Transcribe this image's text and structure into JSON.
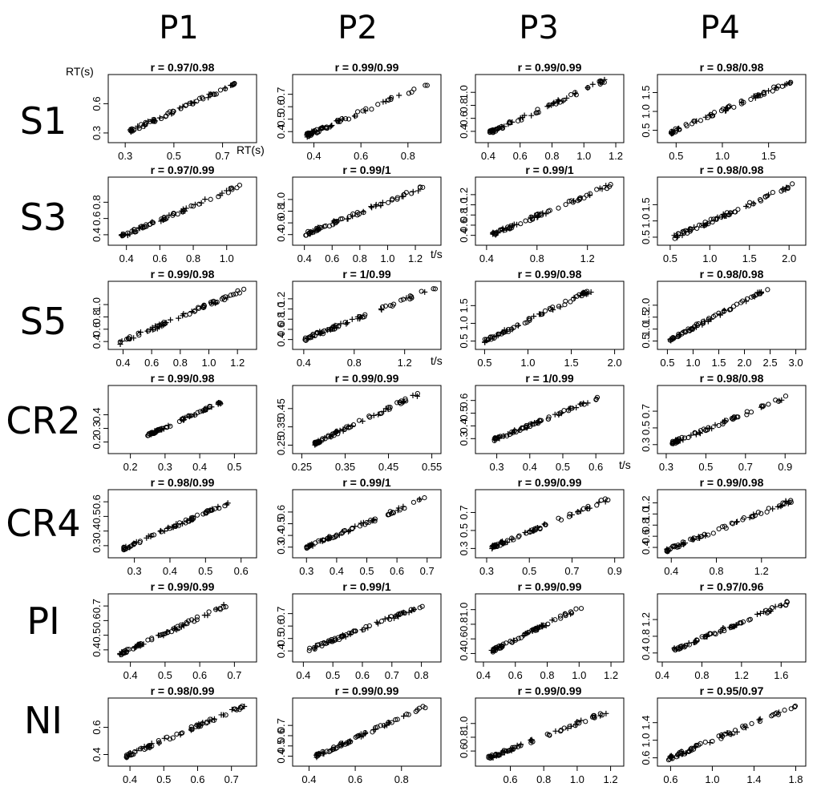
{
  "columns": [
    "P1",
    "P2",
    "P3",
    "P4"
  ],
  "rows": [
    "S1",
    "S3",
    "S5",
    "CR2",
    "CR4",
    "PI",
    "NI"
  ],
  "annotations": {
    "ylabel_rt": "RT(s)",
    "xlabel_rt": "RT(s)",
    "xlabel_ts": "t/s"
  },
  "chart_data": [
    {
      "type": "scatter",
      "title": "r = 0.97/0.98",
      "row": "S1",
      "col": "P1",
      "xlim": [
        0.25,
        0.82
      ],
      "ylim": [
        0.25,
        0.85
      ],
      "xticks": [
        0.3,
        0.5,
        0.7
      ],
      "yticks": [
        0.3,
        0.6
      ],
      "x_range": [
        0.32,
        0.75
      ],
      "y_range": [
        0.32,
        0.8
      ]
    },
    {
      "type": "scatter",
      "title": "r = 0.99/0.99",
      "row": "S1",
      "col": "P2",
      "xlim": [
        0.33,
        0.92
      ],
      "ylim": [
        0.35,
        0.82
      ],
      "xticks": [
        0.4,
        0.6,
        0.8
      ],
      "yticks": [
        0.4,
        0.5,
        0.6,
        0.7
      ],
      "x_range": [
        0.37,
        0.9
      ],
      "y_range": [
        0.37,
        0.8
      ]
    },
    {
      "type": "scatter",
      "title": "r = 0.99/0.99",
      "row": "S1",
      "col": "P3",
      "xlim": [
        0.35,
        1.22
      ],
      "ylim": [
        0.3,
        1.2
      ],
      "xticks": [
        0.4,
        0.6,
        0.8,
        1.0,
        1.2
      ],
      "yticks": [
        0.4,
        0.6,
        0.8,
        1.0
      ],
      "x_range": [
        0.41,
        1.13
      ],
      "y_range": [
        0.38,
        1.18
      ]
    },
    {
      "type": "scatter",
      "title": "r = 0.98/0.98",
      "row": "S1",
      "col": "P4",
      "xlim": [
        0.35,
        1.85
      ],
      "ylim": [
        0.3,
        1.85
      ],
      "xticks": [
        0.5,
        1.0,
        1.5
      ],
      "yticks": [
        0.5,
        1.0,
        1.5
      ],
      "x_range": [
        0.45,
        1.75
      ],
      "y_range": [
        0.45,
        1.8
      ]
    },
    {
      "type": "scatter",
      "title": "r = 0.97/0.99",
      "row": "S3",
      "col": "P1",
      "xlim": [
        0.32,
        1.15
      ],
      "ylim": [
        0.33,
        1.05
      ],
      "xticks": [
        0.4,
        0.6,
        0.8,
        1.0
      ],
      "yticks": [
        0.4,
        0.6,
        0.8
      ],
      "x_range": [
        0.37,
        1.08
      ],
      "y_range": [
        0.38,
        1.0
      ]
    },
    {
      "type": "scatter",
      "title": "r = 0.99/1",
      "row": "S3",
      "col": "P2",
      "xlim": [
        0.35,
        1.35
      ],
      "ylim": [
        0.3,
        1.3
      ],
      "xticks": [
        0.4,
        0.6,
        0.8,
        1.0,
        1.2
      ],
      "yticks": [
        0.4,
        0.6,
        0.8,
        1.0
      ],
      "x_range": [
        0.41,
        1.3
      ],
      "y_range": [
        0.41,
        1.25
      ]
    },
    {
      "type": "scatter",
      "title": "r = 0.99/1",
      "row": "S3",
      "col": "P3",
      "xlim": [
        0.35,
        1.45
      ],
      "ylim": [
        0.3,
        1.45
      ],
      "xticks": [
        0.4,
        0.8,
        1.2
      ],
      "yticks": [
        0.4,
        0.6,
        0.8,
        1.0,
        1.2
      ],
      "x_range": [
        0.45,
        1.4
      ],
      "y_range": [
        0.42,
        1.4
      ]
    },
    {
      "type": "scatter",
      "title": "r = 0.98/0.98",
      "row": "S3",
      "col": "P4",
      "xlim": [
        0.4,
        2.15
      ],
      "ylim": [
        0.4,
        2.2
      ],
      "xticks": [
        0.5,
        1.0,
        1.5,
        2.0
      ],
      "yticks": [
        0.5,
        1.0,
        1.5
      ],
      "x_range": [
        0.55,
        2.05
      ],
      "y_range": [
        0.5,
        2.1
      ]
    },
    {
      "type": "scatter",
      "title": "r = 0.99/0.98",
      "row": "S5",
      "col": "P1",
      "xlim": [
        0.33,
        1.3
      ],
      "ylim": [
        0.35,
        1.3
      ],
      "xticks": [
        0.4,
        0.6,
        0.8,
        1.0,
        1.2
      ],
      "yticks": [
        0.4,
        0.6,
        0.8,
        1.0
      ],
      "x_range": [
        0.38,
        1.25
      ],
      "y_range": [
        0.38,
        1.25
      ]
    },
    {
      "type": "scatter",
      "title": "r = 1/0.99",
      "row": "S5",
      "col": "P2",
      "xlim": [
        0.35,
        1.45
      ],
      "ylim": [
        0.3,
        1.45
      ],
      "xticks": [
        0.4,
        0.8,
        1.2
      ],
      "yticks": [
        0.4,
        0.6,
        0.8,
        1.0,
        1.2
      ],
      "x_range": [
        0.41,
        1.45
      ],
      "y_range": [
        0.41,
        1.43
      ]
    },
    {
      "type": "scatter",
      "title": "r = 0.99/0.98",
      "row": "S5",
      "col": "P3",
      "xlim": [
        0.45,
        2.05
      ],
      "ylim": [
        0.4,
        2.05
      ],
      "xticks": [
        0.5,
        1.0,
        1.5,
        2.0
      ],
      "yticks": [
        0.5,
        1.0,
        1.5
      ],
      "x_range": [
        0.5,
        1.75
      ],
      "y_range": [
        0.5,
        1.95
      ]
    },
    {
      "type": "scatter",
      "title": "r = 0.98/0.98",
      "row": "S5",
      "col": "P4",
      "xlim": [
        0.4,
        3.1
      ],
      "ylim": [
        0.35,
        2.8
      ],
      "xticks": [
        0.5,
        1.0,
        1.5,
        2.0,
        2.5,
        3.0
      ],
      "yticks": [
        0.5,
        1.0,
        1.5,
        2.0
      ],
      "x_range": [
        0.55,
        2.5
      ],
      "y_range": [
        0.55,
        2.75
      ]
    },
    {
      "type": "scatter",
      "title": "r = 0.99/0.98",
      "row": "CR2",
      "col": "P1",
      "xlim": [
        0.15,
        0.55
      ],
      "ylim": [
        0.15,
        0.58
      ],
      "xticks": [
        0.2,
        0.3,
        0.4,
        0.5
      ],
      "yticks": [
        0.2,
        0.3,
        0.4
      ],
      "x_range": [
        0.25,
        0.46
      ],
      "y_range": [
        0.25,
        0.49
      ]
    },
    {
      "type": "scatter",
      "title": "r = 0.99/0.99",
      "row": "CR2",
      "col": "P2",
      "xlim": [
        0.24,
        0.56
      ],
      "ylim": [
        0.23,
        0.55
      ],
      "xticks": [
        0.25,
        0.35,
        0.45,
        0.55
      ],
      "yticks": [
        0.25,
        0.35,
        0.45
      ],
      "x_range": [
        0.28,
        0.52
      ],
      "y_range": [
        0.26,
        0.53
      ]
    },
    {
      "type": "scatter",
      "title": "r = 1/0.99",
      "row": "CR2",
      "col": "P3",
      "xlim": [
        0.25,
        0.67
      ],
      "ylim": [
        0.22,
        0.68
      ],
      "xticks": [
        0.3,
        0.4,
        0.5,
        0.6
      ],
      "yticks": [
        0.3,
        0.4,
        0.5,
        0.6
      ],
      "x_range": [
        0.29,
        0.61
      ],
      "y_range": [
        0.29,
        0.62
      ]
    },
    {
      "type": "scatter",
      "title": "r = 0.98/0.98",
      "row": "CR2",
      "col": "P4",
      "xlim": [
        0.28,
        0.98
      ],
      "ylim": [
        0.25,
        0.95
      ],
      "xticks": [
        0.3,
        0.5,
        0.7,
        0.9
      ],
      "yticks": [
        0.3,
        0.5,
        0.7
      ],
      "x_range": [
        0.33,
        0.92
      ],
      "y_range": [
        0.32,
        0.88
      ]
    },
    {
      "type": "scatter",
      "title": "r = 0.98/0.99",
      "row": "CR4",
      "col": "P1",
      "xlim": [
        0.24,
        0.63
      ],
      "ylim": [
        0.25,
        0.65
      ],
      "xticks": [
        0.3,
        0.4,
        0.5,
        0.6
      ],
      "yticks": [
        0.3,
        0.4,
        0.5,
        0.6
      ],
      "x_range": [
        0.27,
        0.57
      ],
      "y_range": [
        0.28,
        0.6
      ]
    },
    {
      "type": "scatter",
      "title": "r = 0.99/1",
      "row": "CR4",
      "col": "P2",
      "xlim": [
        0.27,
        0.73
      ],
      "ylim": [
        0.25,
        0.75
      ],
      "xticks": [
        0.3,
        0.4,
        0.5,
        0.6,
        0.7
      ],
      "yticks": [
        0.3,
        0.4,
        0.5,
        0.6
      ],
      "x_range": [
        0.3,
        0.7
      ],
      "y_range": [
        0.3,
        0.72
      ]
    },
    {
      "type": "scatter",
      "title": "r = 0.99/0.99",
      "row": "CR4",
      "col": "P3",
      "xlim": [
        0.27,
        0.92
      ],
      "ylim": [
        0.25,
        0.9
      ],
      "xticks": [
        0.3,
        0.5,
        0.7,
        0.9
      ],
      "yticks": [
        0.3,
        0.5,
        0.7
      ],
      "x_range": [
        0.32,
        0.87
      ],
      "y_range": [
        0.31,
        0.85
      ]
    },
    {
      "type": "scatter",
      "title": "r = 0.99/0.98",
      "row": "CR4",
      "col": "P4",
      "xlim": [
        0.32,
        1.55
      ],
      "ylim": [
        0.3,
        1.35
      ],
      "xticks": [
        0.4,
        0.8,
        1.2
      ],
      "yticks": [
        0.4,
        0.6,
        0.8,
        1.0,
        1.2
      ],
      "x_range": [
        0.36,
        1.5
      ],
      "y_range": [
        0.35,
        1.27
      ]
    },
    {
      "type": "scatter",
      "title": "r = 0.99/0.99",
      "row": "PI",
      "col": "P1",
      "xlim": [
        0.35,
        0.75
      ],
      "ylim": [
        0.35,
        0.75
      ],
      "xticks": [
        0.4,
        0.5,
        0.6,
        0.7
      ],
      "yticks": [
        0.4,
        0.5,
        0.6,
        0.7
      ],
      "x_range": [
        0.37,
        0.68
      ],
      "y_range": [
        0.37,
        0.71
      ]
    },
    {
      "type": "scatter",
      "title": "r = 0.99/1",
      "row": "PI",
      "col": "P2",
      "xlim": [
        0.38,
        0.85
      ],
      "ylim": [
        0.35,
        0.82
      ],
      "xticks": [
        0.4,
        0.5,
        0.6,
        0.7,
        0.8
      ],
      "yticks": [
        0.4,
        0.5,
        0.6,
        0.7
      ],
      "x_range": [
        0.42,
        0.82
      ],
      "y_range": [
        0.41,
        0.78
      ]
    },
    {
      "type": "scatter",
      "title": "r = 0.99/0.99",
      "row": "PI",
      "col": "P3",
      "xlim": [
        0.38,
        1.25
      ],
      "ylim": [
        0.35,
        1.15
      ],
      "xticks": [
        0.4,
        0.6,
        0.8,
        1.0,
        1.2
      ],
      "yticks": [
        0.4,
        0.6,
        0.8,
        1.0
      ],
      "x_range": [
        0.45,
        1.04
      ],
      "y_range": [
        0.43,
        1.06
      ]
    },
    {
      "type": "scatter",
      "title": "r = 0.97/0.96",
      "row": "PI",
      "col": "P4",
      "xlim": [
        0.4,
        1.8
      ],
      "ylim": [
        0.3,
        1.7
      ],
      "xticks": [
        0.4,
        0.8,
        1.2,
        1.6
      ],
      "yticks": [
        0.4,
        0.8,
        1.2
      ],
      "x_range": [
        0.52,
        1.72
      ],
      "y_range": [
        0.48,
        1.65
      ]
    },
    {
      "type": "scatter",
      "title": "r = 0.98/0.99",
      "row": "NI",
      "col": "P1",
      "xlim": [
        0.35,
        0.76
      ],
      "ylim": [
        0.35,
        0.78
      ],
      "xticks": [
        0.4,
        0.5,
        0.6,
        0.7
      ],
      "yticks": [
        0.4,
        0.6
      ],
      "x_range": [
        0.39,
        0.74
      ],
      "y_range": [
        0.39,
        0.76
      ]
    },
    {
      "type": "scatter",
      "title": "r = 0.99/0.99",
      "row": "NI",
      "col": "P2",
      "xlim": [
        0.35,
        0.95
      ],
      "ylim": [
        0.35,
        0.92
      ],
      "xticks": [
        0.4,
        0.6,
        0.8
      ],
      "yticks": [
        0.4,
        0.5,
        0.6,
        0.7
      ],
      "x_range": [
        0.43,
        0.91
      ],
      "y_range": [
        0.4,
        0.89
      ]
    },
    {
      "type": "scatter",
      "title": "r = 0.99/0.99",
      "row": "NI",
      "col": "P3",
      "xlim": [
        0.42,
        1.25
      ],
      "ylim": [
        0.45,
        1.3
      ],
      "xticks": [
        0.6,
        0.8,
        1.0,
        1.2
      ],
      "yticks": [
        0.6,
        0.8,
        1.0
      ],
      "x_range": [
        0.47,
        1.18
      ],
      "y_range": [
        0.5,
        1.17
      ]
    },
    {
      "type": "scatter",
      "title": "r = 0.95/0.97",
      "row": "NI",
      "col": "P4",
      "xlim": [
        0.52,
        1.85
      ],
      "ylim": [
        0.52,
        1.85
      ],
      "xticks": [
        0.6,
        1.0,
        1.4,
        1.8
      ],
      "yticks": [
        0.6,
        1.0,
        1.4
      ],
      "x_range": [
        0.58,
        1.82
      ],
      "y_range": [
        0.58,
        1.8
      ]
    }
  ]
}
